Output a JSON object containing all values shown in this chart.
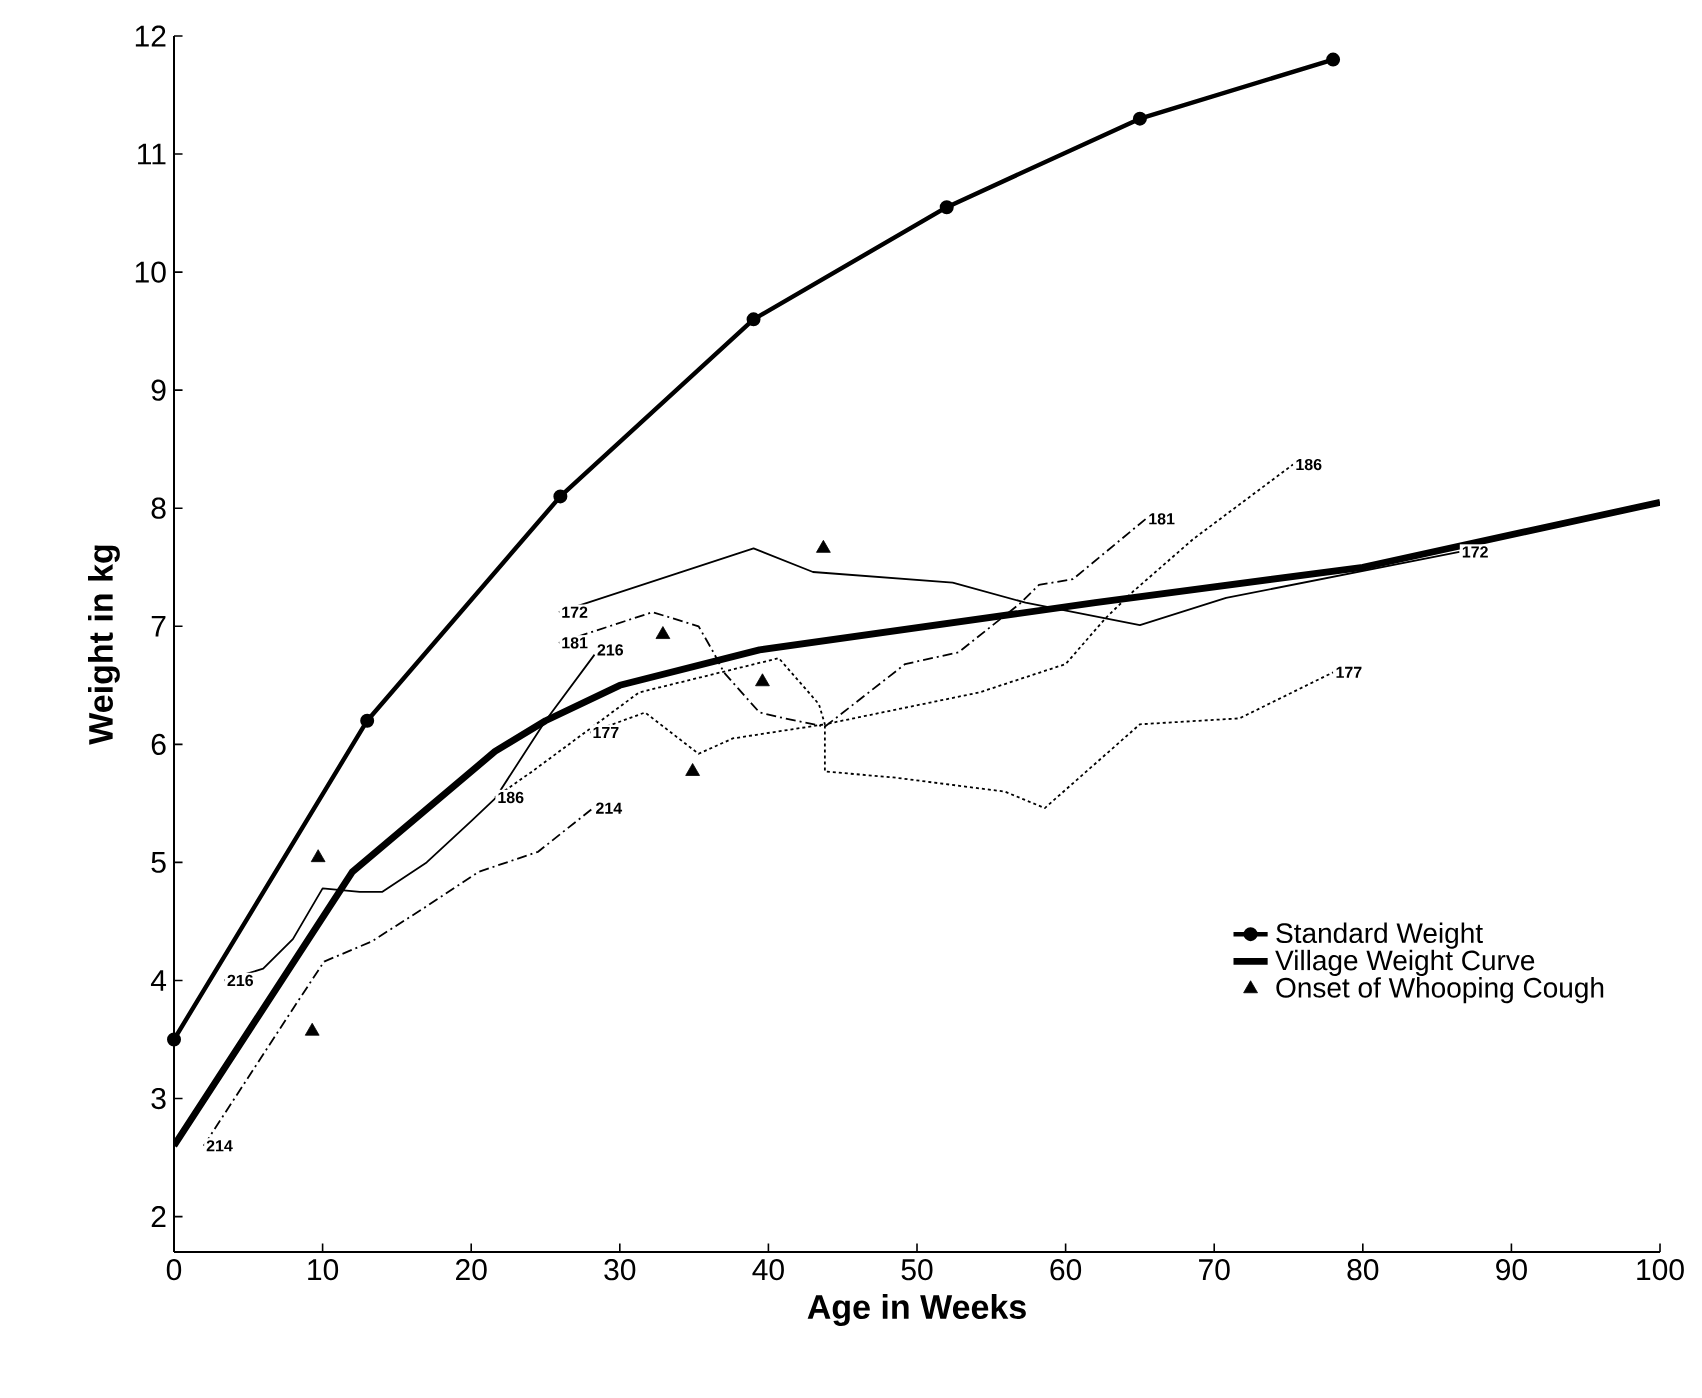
{
  "chart_data": {
    "type": "line",
    "xlabel": "Age in Weeks",
    "ylabel": "Weight in kg",
    "xlim": [
      0,
      100
    ],
    "ylim": [
      1.7,
      12
    ],
    "xticks": [
      0,
      10,
      20,
      30,
      40,
      50,
      60,
      70,
      80,
      90,
      100
    ],
    "yticks": [
      2,
      3,
      4,
      5,
      6,
      7,
      8,
      9,
      10,
      11,
      12
    ],
    "legend": "bottom right",
    "series": [
      {
        "name": "Standard Weight",
        "color": "#000000",
        "marker": "circle",
        "line_style": "solid",
        "x": [
          0,
          13,
          26,
          39,
          52,
          65,
          78
        ],
        "values": [
          3.5,
          6.2,
          8.1,
          9.6,
          10.55,
          11.3,
          11.8
        ]
      },
      {
        "name": "Village Weight Curve",
        "color": "#000000",
        "line_style": "solid",
        "x": [
          0,
          12,
          21.6,
          25,
          30,
          39.4,
          62,
          80,
          100
        ],
        "values": [
          2.6,
          4.92,
          5.94,
          6.2,
          6.5,
          6.8,
          7.2,
          7.5,
          8.05
        ]
      },
      {
        "name": "Onset of Whooping Cough",
        "type": "scatter",
        "color": "#000000",
        "marker": "triangle",
        "x": [
          9.7,
          9.3,
          32.9,
          34.9,
          39.6,
          43.7
        ],
        "values": [
          5.04,
          3.57,
          6.93,
          5.77,
          6.53,
          7.66
        ]
      },
      {
        "color": "#000000",
        "line_style": "solid",
        "x": [
          3.4,
          6,
          8,
          10,
          12.5,
          14,
          17,
          20,
          21.6,
          25,
          28.3
        ],
        "values": [
          4.0,
          4.1,
          4.35,
          4.78,
          4.75,
          4.75,
          5.0,
          5.35,
          5.54,
          6.2,
          6.76
        ]
      },
      {
        "color": "#000000",
        "line_style": "dashed",
        "x": [
          2,
          7.9,
          10.1,
          13.3,
          16.9,
          20.5,
          24.5,
          28.2
        ],
        "values": [
          2.6,
          3.74,
          4.16,
          4.33,
          4.62,
          4.92,
          5.09,
          5.46
        ]
      },
      {
        "color": "#000000",
        "line_style": "solid",
        "x": [
          25.9,
          39,
          43,
          52.4,
          57.3,
          65,
          70.8,
          86.5
        ],
        "values": [
          7.12,
          7.66,
          7.46,
          7.37,
          7.2,
          7.01,
          7.24,
          7.63
        ]
      },
      {
        "color": "#000000",
        "line_style": "dashed",
        "x": [
          25.9,
          32.2,
          35.3,
          36.3,
          37,
          39.4,
          41.1,
          43.8,
          49.2,
          52.8,
          56.9,
          58.2,
          60.5,
          65.4
        ],
        "values": [
          6.86,
          7.12,
          7.0,
          6.78,
          6.61,
          6.27,
          6.22,
          6.15,
          6.68,
          6.78,
          7.19,
          7.35,
          7.4,
          7.91
        ]
      },
      {
        "color": "#000000",
        "line_style": "dotted",
        "x": [
          21.6,
          24.1,
          31.3,
          40.7,
          43.4,
          43.8,
          54.2,
          60,
          62.7,
          64.5,
          68.6,
          75.3
        ],
        "values": [
          5.55,
          5.77,
          6.44,
          6.73,
          6.34,
          6.17,
          6.44,
          6.68,
          7.07,
          7.29,
          7.74,
          8.37
        ]
      },
      {
        "color": "#000000",
        "line_style": "dotted",
        "x": [
          28,
          31.7,
          35.3,
          37.6,
          43.8,
          43.8,
          48.4,
          55.9,
          58.6,
          65,
          71.7,
          78
        ],
        "values": [
          6.1,
          6.27,
          5.92,
          6.05,
          6.17,
          5.77,
          5.72,
          5.6,
          5.46,
          6.17,
          6.22,
          6.61
        ]
      }
    ],
    "annotations": [
      {
        "text": "216",
        "x": 3.4,
        "y": 4.0
      },
      {
        "text": "214",
        "x": 2,
        "y": 2.6
      },
      {
        "text": "216",
        "x": 28.3,
        "y": 6.8
      },
      {
        "text": "214",
        "x": 28.2,
        "y": 5.46
      },
      {
        "text": "172",
        "x": 25.9,
        "y": 7.12
      },
      {
        "text": "181",
        "x": 25.9,
        "y": 6.86
      },
      {
        "text": "186",
        "x": 21.6,
        "y": 5.55
      },
      {
        "text": "177",
        "x": 28,
        "y": 6.1
      },
      {
        "text": "181",
        "x": 65.4,
        "y": 7.91
      },
      {
        "text": "186",
        "x": 75.3,
        "y": 8.37
      },
      {
        "text": "172",
        "x": 86.5,
        "y": 7.63
      },
      {
        "text": "177",
        "x": 78,
        "y": 6.61
      }
    ]
  }
}
